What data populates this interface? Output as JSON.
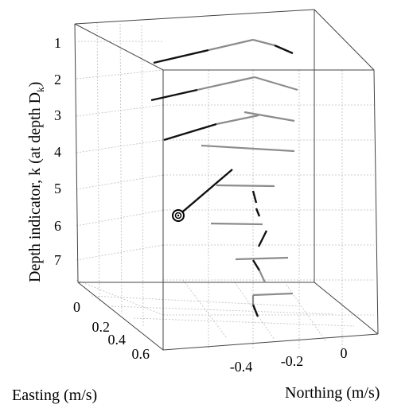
{
  "chart_data": {
    "type": "3d-line-segments",
    "zlabel_main": "Depth indicator, k (at depth D",
    "zlabel_sub": "k",
    "zlabel_close": ")",
    "xlabel": "Easting (m/s)",
    "ylabel": "Northing (m/s)",
    "z_ticks": [
      "1",
      "2",
      "3",
      "4",
      "5",
      "6",
      "7"
    ],
    "easting_ticks": [
      "0",
      "0.2",
      "0.4",
      "0.6"
    ],
    "northing_ticks": [
      "-0.4",
      "-0.2",
      "0"
    ],
    "grid": true,
    "marker": {
      "label": "origin",
      "depth_indicator": 6
    },
    "series": [
      {
        "style": "dark",
        "count": 12
      },
      {
        "style": "gray",
        "count": 12
      }
    ]
  }
}
